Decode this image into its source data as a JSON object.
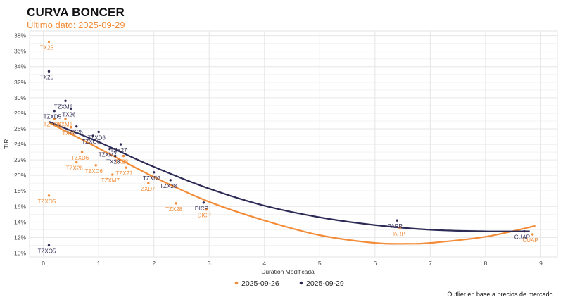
{
  "header": {
    "title": "CURVA BONCER",
    "subtitle": "Último dato: 2025-09-29"
  },
  "footnote": "Outlier en base a precios de mercado.",
  "chart_data": {
    "type": "scatter",
    "title": "CURVA BONCER",
    "subtitle": "Último dato: 2025-09-29",
    "xlabel": "Duration Modificada",
    "ylabel": "TIR",
    "xlim": [
      -0.25,
      9.3
    ],
    "ylim": [
      9.5,
      38.6
    ],
    "x_ticks": [
      0,
      1,
      2,
      3,
      4,
      5,
      6,
      7,
      8,
      9
    ],
    "y_ticks": [
      10,
      12,
      14,
      16,
      18,
      20,
      22,
      24,
      26,
      28,
      30,
      32,
      34,
      36,
      38
    ],
    "y_tick_suffix": "%",
    "grid": true,
    "legend_position": "bottom",
    "series": [
      {
        "name": "2025-09-26",
        "color": "#F28C38",
        "points": [
          {
            "label": "TX25",
            "x": 0.1,
            "y": 37.2
          },
          {
            "label": "TZXD5",
            "x": 0.2,
            "y": 27.3
          },
          {
            "label": "TZXM6",
            "x": 0.4,
            "y": 27.3
          },
          {
            "label": "TX26",
            "x": 0.5,
            "y": 26.2
          },
          {
            "label": "TZXD6",
            "x": 0.7,
            "y": 23.0
          },
          {
            "label": "TZX26",
            "x": 0.6,
            "y": 21.7
          },
          {
            "label": "TZXD6",
            "x": 0.95,
            "y": 21.3
          },
          {
            "label": "TX28",
            "x": 1.45,
            "y": 22.5
          },
          {
            "label": "TZXM7",
            "x": 1.25,
            "y": 20.1
          },
          {
            "label": "TZX27",
            "x": 1.5,
            "y": 21.0
          },
          {
            "label": "TZXD7",
            "x": 1.9,
            "y": 19.0
          },
          {
            "label": "TZX28",
            "x": 2.4,
            "y": 16.4
          },
          {
            "label": "DICP",
            "x": 2.95,
            "y": 15.6
          },
          {
            "label": "PARP",
            "x": 6.45,
            "y": 13.2
          },
          {
            "label": "CUAP",
            "x": 8.85,
            "y": 12.4
          },
          {
            "label": "TZXO5",
            "x": 0.1,
            "y": 17.4
          }
        ],
        "curve": [
          {
            "x": 0.1,
            "y": 26.8
          },
          {
            "x": 1.0,
            "y": 23.5
          },
          {
            "x": 2.0,
            "y": 19.8
          },
          {
            "x": 3.0,
            "y": 16.6
          },
          {
            "x": 4.0,
            "y": 14.2
          },
          {
            "x": 5.0,
            "y": 12.3
          },
          {
            "x": 6.0,
            "y": 11.3
          },
          {
            "x": 6.6,
            "y": 11.2
          },
          {
            "x": 7.0,
            "y": 11.3
          },
          {
            "x": 8.0,
            "y": 12.1
          },
          {
            "x": 8.9,
            "y": 13.5
          }
        ]
      },
      {
        "name": "2025-09-29",
        "color": "#2D2B55",
        "points": [
          {
            "label": "TX25",
            "x": 0.1,
            "y": 33.4
          },
          {
            "label": "TZXM6",
            "x": 0.4,
            "y": 29.6
          },
          {
            "label": "TZXD5",
            "x": 0.2,
            "y": 28.3
          },
          {
            "label": "TX26",
            "x": 0.5,
            "y": 28.6
          },
          {
            "label": "TZX26",
            "x": 0.6,
            "y": 26.3
          },
          {
            "label": "TZXD6",
            "x": 1.0,
            "y": 25.6
          },
          {
            "label": "TZXO6",
            "x": 0.9,
            "y": 25.1
          },
          {
            "label": "TZX27",
            "x": 1.4,
            "y": 24.0
          },
          {
            "label": "TZXM7",
            "x": 1.2,
            "y": 23.4
          },
          {
            "label": "TX28",
            "x": 1.3,
            "y": 22.5
          },
          {
            "label": "TZXD7",
            "x": 2.0,
            "y": 20.4
          },
          {
            "label": "TZX28",
            "x": 2.3,
            "y": 19.4
          },
          {
            "label": "DICP",
            "x": 2.9,
            "y": 16.5
          },
          {
            "label": "PARP",
            "x": 6.4,
            "y": 14.2
          },
          {
            "label": "CUAP",
            "x": 8.7,
            "y": 12.8
          },
          {
            "label": "TZXO5",
            "x": 0.1,
            "y": 11.0
          }
        ],
        "curve": [
          {
            "x": 0.1,
            "y": 26.9
          },
          {
            "x": 1.0,
            "y": 24.3
          },
          {
            "x": 2.0,
            "y": 21.1
          },
          {
            "x": 3.0,
            "y": 18.3
          },
          {
            "x": 4.0,
            "y": 16.1
          },
          {
            "x": 5.0,
            "y": 14.6
          },
          {
            "x": 6.0,
            "y": 13.6
          },
          {
            "x": 7.0,
            "y": 13.0
          },
          {
            "x": 8.0,
            "y": 12.8
          },
          {
            "x": 8.8,
            "y": 12.8
          }
        ]
      }
    ]
  }
}
